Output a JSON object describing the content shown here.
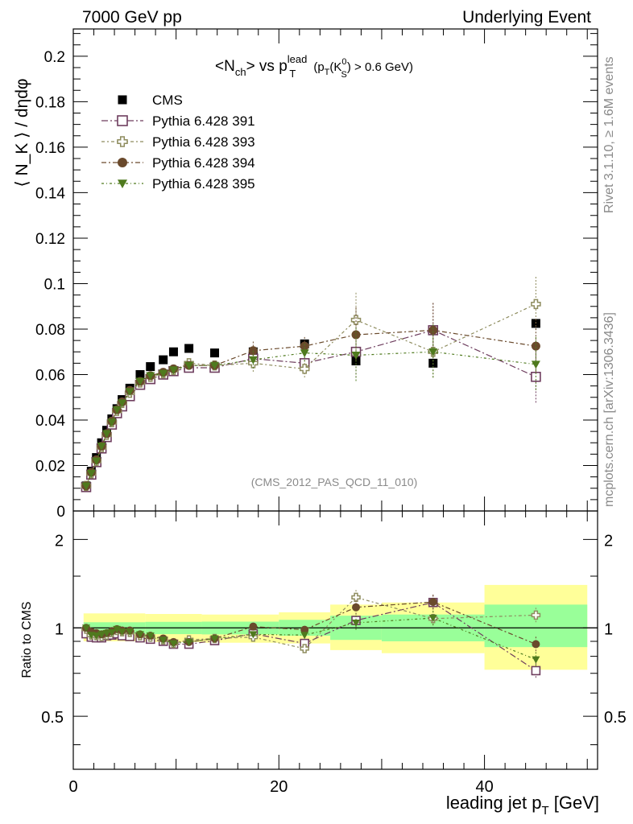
{
  "header": {
    "left": "7000 GeV pp",
    "right": "Underlying Event"
  },
  "side_labels": {
    "rivet": "Rivet 3.1.10, ≥ 1.6M events",
    "mcplots": "mcplots.cern.ch [arXiv:1306.3436]"
  },
  "chart_data": [
    {
      "type": "scatter",
      "title": {
        "main": "<N",
        "main_sub": "ch",
        "mid": "> vs p",
        "pt_sup": "lead",
        "pt_sub": "T",
        "cut_a": "(p",
        "cut_a_sub": "T",
        "cut_b": "(K",
        "cut_b_sup": "0",
        "cut_b_sub": "S",
        "cut_c": ") > 0.6 GeV)"
      },
      "ylabel": "⟨ N_K ⟩ / dηdφ",
      "xlim": [
        0,
        51
      ],
      "ylim": [
        0,
        0.212
      ],
      "y_ticks": [
        "0",
        "0.02",
        "0.04",
        "0.06",
        "0.08",
        "0.1",
        "0.12",
        "0.14",
        "0.16",
        "0.18",
        "0.2"
      ],
      "y_tick_values": [
        0,
        0.02,
        0.04,
        0.06,
        0.08,
        0.1,
        0.12,
        0.14,
        0.16,
        0.18,
        0.2
      ],
      "watermark": "(CMS_2012_PAS_QCD_11_010)",
      "legend_position": "top-left",
      "x": [
        1.25,
        1.75,
        2.25,
        2.75,
        3.25,
        3.75,
        4.25,
        4.75,
        5.5,
        6.5,
        7.5,
        8.75,
        9.75,
        11.25,
        13.75,
        17.5,
        22.5,
        27.5,
        35,
        45
      ],
      "series": [
        {
          "name": "CMS",
          "color": "#000000",
          "marker": "filled-square",
          "values": [
            0.011,
            0.0175,
            0.0235,
            0.03,
            0.0355,
            0.0405,
            0.045,
            0.049,
            0.054,
            0.06,
            0.0635,
            0.0665,
            0.07,
            0.0715,
            0.0695,
            0.07,
            0.0735,
            0.066,
            0.065,
            0.0825
          ]
        },
        {
          "name": "Pythia 6.428 391",
          "color": "#6e3d5e",
          "marker": "open-square",
          "values": [
            0.0105,
            0.016,
            0.0215,
            0.0275,
            0.0325,
            0.038,
            0.043,
            0.046,
            0.0505,
            0.0555,
            0.058,
            0.06,
            0.0615,
            0.063,
            0.063,
            0.067,
            0.065,
            0.07,
            0.0795,
            0.059
          ]
        },
        {
          "name": "Pythia 6.428 393",
          "color": "#8e8c5e",
          "marker": "open-cross",
          "values": [
            0.011,
            0.0165,
            0.022,
            0.028,
            0.0335,
            0.039,
            0.044,
            0.0475,
            0.052,
            0.0565,
            0.059,
            0.0605,
            0.062,
            0.065,
            0.064,
            0.065,
            0.0625,
            0.084,
            0.07,
            0.091
          ]
        },
        {
          "name": "Pythia 6.428 394",
          "color": "#6a4a2c",
          "marker": "filled-circle",
          "values": [
            0.011,
            0.017,
            0.0225,
            0.0285,
            0.034,
            0.0395,
            0.0445,
            0.048,
            0.053,
            0.057,
            0.0595,
            0.061,
            0.0625,
            0.064,
            0.064,
            0.0705,
            0.0725,
            0.0775,
            0.0795,
            0.0725
          ]
        },
        {
          "name": "Pythia 6.428 395",
          "color": "#4f7a1e",
          "marker": "filled-triangle-down",
          "values": [
            0.011,
            0.0165,
            0.022,
            0.0285,
            0.034,
            0.039,
            0.0445,
            0.0475,
            0.0525,
            0.057,
            0.0595,
            0.0605,
            0.062,
            0.064,
            0.064,
            0.0665,
            0.0695,
            0.0685,
            0.07,
            0.0645
          ]
        }
      ]
    },
    {
      "type": "scatter",
      "ylabel": "Ratio to CMS",
      "xlabel": "leading jet p",
      "xlabel_sub": "T",
      "xlabel_unit": " [GeV]",
      "xlim": [
        0,
        51
      ],
      "ylim": [
        0.33,
        2.5
      ],
      "log_y": true,
      "x_ticks": [
        "0",
        "20",
        "40"
      ],
      "x_tick_values": [
        0,
        20,
        40
      ],
      "y_ticks": [
        "0.5",
        "1",
        "2"
      ],
      "y_tick_values": [
        0.5,
        1,
        2
      ],
      "bands": [
        {
          "x": [
            1,
            7
          ],
          "green": [
            0.955,
            1.045
          ],
          "yellow": [
            0.9,
            1.12
          ]
        },
        {
          "x": [
            7,
            12.5
          ],
          "green": [
            0.952,
            1.048
          ],
          "yellow": [
            0.895,
            1.115
          ]
        },
        {
          "x": [
            12.5,
            20
          ],
          "green": [
            0.95,
            1.05
          ],
          "yellow": [
            0.89,
            1.11
          ]
        },
        {
          "x": [
            20,
            25
          ],
          "green": [
            0.94,
            1.065
          ],
          "yellow": [
            0.885,
            1.13
          ]
        },
        {
          "x": [
            25,
            30
          ],
          "green": [
            0.91,
            1.1
          ],
          "yellow": [
            0.84,
            1.2
          ]
        },
        {
          "x": [
            30,
            40
          ],
          "green": [
            0.9,
            1.11
          ],
          "yellow": [
            0.82,
            1.22
          ]
        },
        {
          "x": [
            40,
            50
          ],
          "green": [
            0.86,
            1.2
          ],
          "yellow": [
            0.72,
            1.4
          ]
        }
      ],
      "series": [
        {
          "name": "Pythia 6.428 391",
          "values": [
            0.955,
            0.93,
            0.925,
            0.925,
            0.94,
            0.945,
            0.955,
            0.94,
            0.935,
            0.925,
            0.915,
            0.9,
            0.88,
            0.88,
            0.905,
            0.955,
            0.885,
            1.06,
            1.22,
            0.715
          ]
        },
        {
          "name": "Pythia 6.428 393",
          "values": [
            0.99,
            0.945,
            0.94,
            0.935,
            0.945,
            0.965,
            0.98,
            0.97,
            0.965,
            0.94,
            0.93,
            0.91,
            0.885,
            0.91,
            0.92,
            0.93,
            0.85,
            1.27,
            1.075,
            1.105
          ]
        },
        {
          "name": "Pythia 6.428 394",
          "values": [
            1.0,
            0.97,
            0.96,
            0.95,
            0.96,
            0.975,
            0.99,
            0.98,
            0.98,
            0.95,
            0.94,
            0.92,
            0.895,
            0.895,
            0.92,
            1.01,
            0.985,
            1.175,
            1.225,
            0.88
          ]
        },
        {
          "name": "Pythia 6.428 395",
          "values": [
            1.0,
            0.945,
            0.94,
            0.95,
            0.96,
            0.965,
            0.99,
            0.97,
            0.97,
            0.95,
            0.94,
            0.91,
            0.885,
            0.895,
            0.92,
            0.95,
            0.945,
            1.04,
            1.08,
            0.78
          ]
        }
      ]
    }
  ]
}
